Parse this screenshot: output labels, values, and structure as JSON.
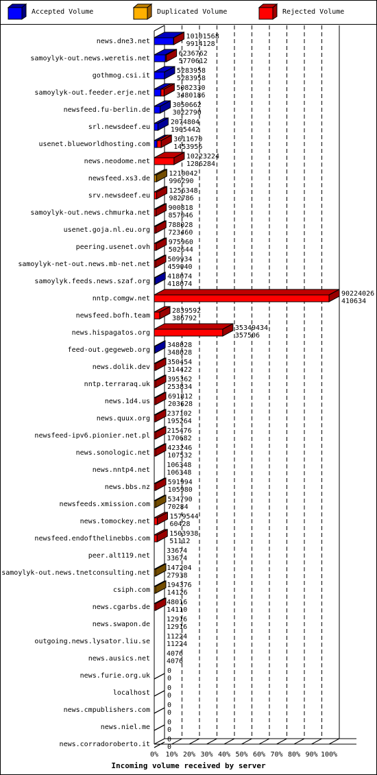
{
  "legend": [
    {
      "label": "Accepted Volume",
      "color": "#0000ff",
      "icon": "blue-cube-icon"
    },
    {
      "label": "Duplicated Volume",
      "color": "#ffb000",
      "icon": "orange-cube-icon"
    },
    {
      "label": "Rejected Volume",
      "color": "#ff0000",
      "icon": "red-cube-icon"
    }
  ],
  "chart_data": {
    "type": "bar",
    "orientation": "horizontal",
    "stacked": true,
    "xlabel": "Incoming volume received by server",
    "xticks": [
      "0%",
      "10%",
      "20%",
      "30%",
      "40%",
      "50%",
      "60%",
      "70%",
      "80%",
      "90%",
      "100%"
    ],
    "xlim": [
      0,
      100
    ],
    "max_total": 90224026,
    "colors": {
      "accepted": "#0000ff",
      "duplicated": "#c08000",
      "rejected": "#ff0000"
    },
    "servers": [
      {
        "name": "news.dne3.net",
        "total": 10101568,
        "accepted": 9914128,
        "type": "accepted"
      },
      {
        "name": "samoylyk-out.news.weretis.net",
        "total": 6236762,
        "accepted": 5770612,
        "type": "accepted"
      },
      {
        "name": "gothmog.csi.it",
        "total": 5283958,
        "accepted": 5283958,
        "type": "accepted"
      },
      {
        "name": "samoylyk-out.feeder.erje.net",
        "total": 5082330,
        "accepted": 3480186,
        "type": "accepted"
      },
      {
        "name": "newsfeed.fu-berlin.de",
        "total": 3050662,
        "accepted": 3022790,
        "type": "accepted"
      },
      {
        "name": "srl.newsdeef.eu",
        "total": 2074804,
        "accepted": 1905442,
        "type": "accepted"
      },
      {
        "name": "usenet.blueworldhosting.com",
        "total": 3611670,
        "accepted": 1453956,
        "type": "accepted"
      },
      {
        "name": "news.neodome.net",
        "total": 10223224,
        "accepted": 1286284,
        "type": "rejected"
      },
      {
        "name": "newsfeed.xs3.de",
        "total": 1210042,
        "accepted": 996290,
        "type": "duplicated"
      },
      {
        "name": "srv.newsdeef.eu",
        "total": 1256348,
        "accepted": 982786,
        "type": "rejected"
      },
      {
        "name": "samoylyk-out.news.chmurka.net",
        "total": 900818,
        "accepted": 857046,
        "type": "rejected"
      },
      {
        "name": "usenet.goja.nl.eu.org",
        "total": 788028,
        "accepted": 723460,
        "type": "rejected"
      },
      {
        "name": "peering.usenet.ovh",
        "total": 975960,
        "accepted": 502644,
        "type": "rejected"
      },
      {
        "name": "samoylyk-net-out.news.mb-net.net",
        "total": 509934,
        "accepted": 459040,
        "type": "rejected"
      },
      {
        "name": "samoylyk.feeds.news.szaf.org",
        "total": 418074,
        "accepted": 418074,
        "type": "accepted"
      },
      {
        "name": "nntp.comgw.net",
        "total": 90224026,
        "accepted": 410634,
        "type": "rejected"
      },
      {
        "name": "newsfeed.bofh.team",
        "total": 2839592,
        "accepted": 386792,
        "type": "rejected"
      },
      {
        "name": "news.hispagatos.org",
        "total": 35349434,
        "accepted": 357506,
        "type": "rejected"
      },
      {
        "name": "feed-out.gegeweb.org",
        "total": 348028,
        "accepted": 348028,
        "type": "accepted"
      },
      {
        "name": "news.dolik.dev",
        "total": 350454,
        "accepted": 314422,
        "type": "rejected"
      },
      {
        "name": "nntp.terraraq.uk",
        "total": 395362,
        "accepted": 253834,
        "type": "rejected"
      },
      {
        "name": "news.1d4.us",
        "total": 691812,
        "accepted": 203628,
        "type": "rejected"
      },
      {
        "name": "news.quux.org",
        "total": 237102,
        "accepted": 195264,
        "type": "rejected"
      },
      {
        "name": "newsfeed-ipv6.pionier.net.pl",
        "total": 215476,
        "accepted": 170682,
        "type": "rejected"
      },
      {
        "name": "news.sonologic.net",
        "total": 423246,
        "accepted": 107532,
        "type": "rejected"
      },
      {
        "name": "news.nntp4.net",
        "total": 106348,
        "accepted": 106348,
        "type": "accepted"
      },
      {
        "name": "news.bbs.nz",
        "total": 591994,
        "accepted": 105980,
        "type": "rejected"
      },
      {
        "name": "newsfeeds.xmission.com",
        "total": 534790,
        "accepted": 70284,
        "type": "duplicated"
      },
      {
        "name": "news.tomockey.net",
        "total": 1579544,
        "accepted": 60428,
        "type": "rejected"
      },
      {
        "name": "newsfeed.endofthelinebbs.com",
        "total": 1503938,
        "accepted": 51112,
        "type": "rejected"
      },
      {
        "name": "peer.alt119.net",
        "total": 33674,
        "accepted": 33674,
        "type": "accepted"
      },
      {
        "name": "samoylyk-out.news.tnetconsulting.net",
        "total": 147204,
        "accepted": 27938,
        "type": "duplicated"
      },
      {
        "name": "csiph.com",
        "total": 194376,
        "accepted": 14126,
        "type": "duplicated"
      },
      {
        "name": "news.cgarbs.de",
        "total": 48016,
        "accepted": 14110,
        "type": "rejected"
      },
      {
        "name": "news.swapon.de",
        "total": 12916,
        "accepted": 12916,
        "type": "accepted"
      },
      {
        "name": "outgoing.news.lysator.liu.se",
        "total": 11224,
        "accepted": 11224,
        "type": "accepted"
      },
      {
        "name": "news.ausics.net",
        "total": 4076,
        "accepted": 4076,
        "type": "accepted"
      },
      {
        "name": "news.furie.org.uk",
        "total": 0,
        "accepted": 0,
        "type": "none"
      },
      {
        "name": "localhost",
        "total": 0,
        "accepted": 0,
        "type": "none"
      },
      {
        "name": "news.cmpublishers.com",
        "total": 0,
        "accepted": 0,
        "type": "none"
      },
      {
        "name": "news.niel.me",
        "total": 0,
        "accepted": 0,
        "type": "none"
      },
      {
        "name": "news.corradoroberto.it",
        "total": 0,
        "accepted": 0,
        "type": "none"
      }
    ]
  }
}
